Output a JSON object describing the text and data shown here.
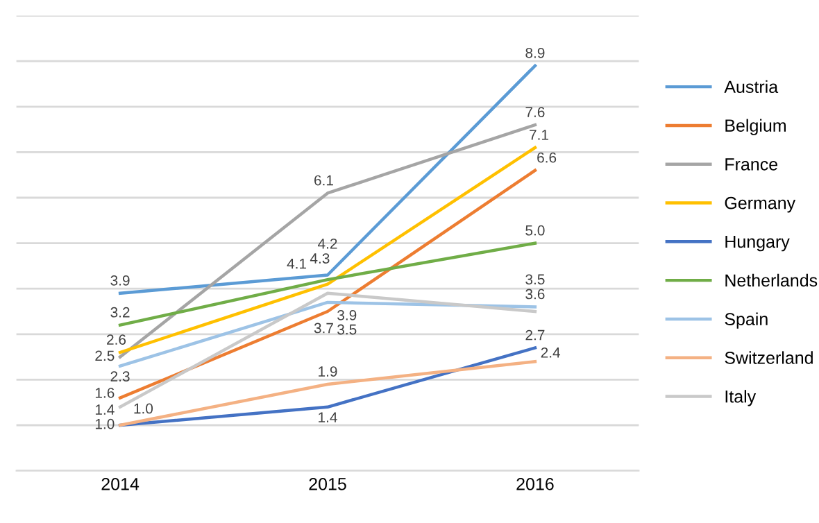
{
  "chart_data": {
    "type": "line",
    "categories": [
      "2014",
      "2015",
      "2016"
    ],
    "series": [
      {
        "name": "Austria",
        "color": "#5b9bd5",
        "values": [
          3.9,
          4.3,
          8.9
        ],
        "value_labels": [
          "3.9",
          "4.3",
          "8.9"
        ]
      },
      {
        "name": "Belgium",
        "color": "#ed7d31",
        "values": [
          1.6,
          3.5,
          6.6
        ],
        "value_labels": [
          "1.6",
          "3.5",
          "6.6"
        ]
      },
      {
        "name": "France",
        "color": "#a5a5a5",
        "values": [
          2.5,
          6.1,
          7.6
        ],
        "value_labels": [
          "2.5",
          "6.1",
          "7.6"
        ]
      },
      {
        "name": "Germany",
        "color": "#ffc000",
        "values": [
          2.6,
          4.1,
          7.1
        ],
        "value_labels": [
          "2.6",
          "4.1",
          "7.1"
        ]
      },
      {
        "name": "Hungary",
        "color": "#4472c4",
        "values": [
          1.0,
          1.4,
          2.7
        ],
        "value_labels": [
          "1.0",
          "1.4",
          "2.7"
        ]
      },
      {
        "name": "Netherlands",
        "color": "#70ad47",
        "values": [
          3.2,
          4.2,
          5.0
        ],
        "value_labels": [
          "3.2",
          "4.2",
          "5.0"
        ]
      },
      {
        "name": "Spain",
        "color": "#9dc3e6",
        "values": [
          2.3,
          3.7,
          3.6
        ],
        "value_labels": [
          "2.3",
          "3.7",
          "3.6"
        ]
      },
      {
        "name": "Switzerland",
        "color": "#f4b183",
        "values": [
          1.0,
          1.9,
          2.4
        ],
        "value_labels": [
          "1.0",
          "1.9",
          "2.4"
        ]
      },
      {
        "name": "Italy",
        "color": "#c9c9c9",
        "values": [
          1.4,
          3.9,
          3.5
        ],
        "value_labels": [
          "1.4",
          "3.9",
          "3.5"
        ]
      }
    ],
    "ylim": [
      0,
      10
    ],
    "yticks": [
      {
        "value": 0,
        "label": null
      },
      {
        "value": 1,
        "label": null
      },
      {
        "value": 2,
        "label": null
      },
      {
        "value": 3,
        "label": null
      },
      {
        "value": 4,
        "label": null
      },
      {
        "value": 5,
        "label": null
      },
      {
        "value": 6,
        "label": null
      },
      {
        "value": 7,
        "label": null
      },
      {
        "value": 8,
        "label": null
      },
      {
        "value": 9,
        "label": null
      },
      {
        "value": 10,
        "label": null
      }
    ],
    "tick_labels": "x",
    "grid": "y",
    "legend": "right",
    "marker": "none"
  }
}
